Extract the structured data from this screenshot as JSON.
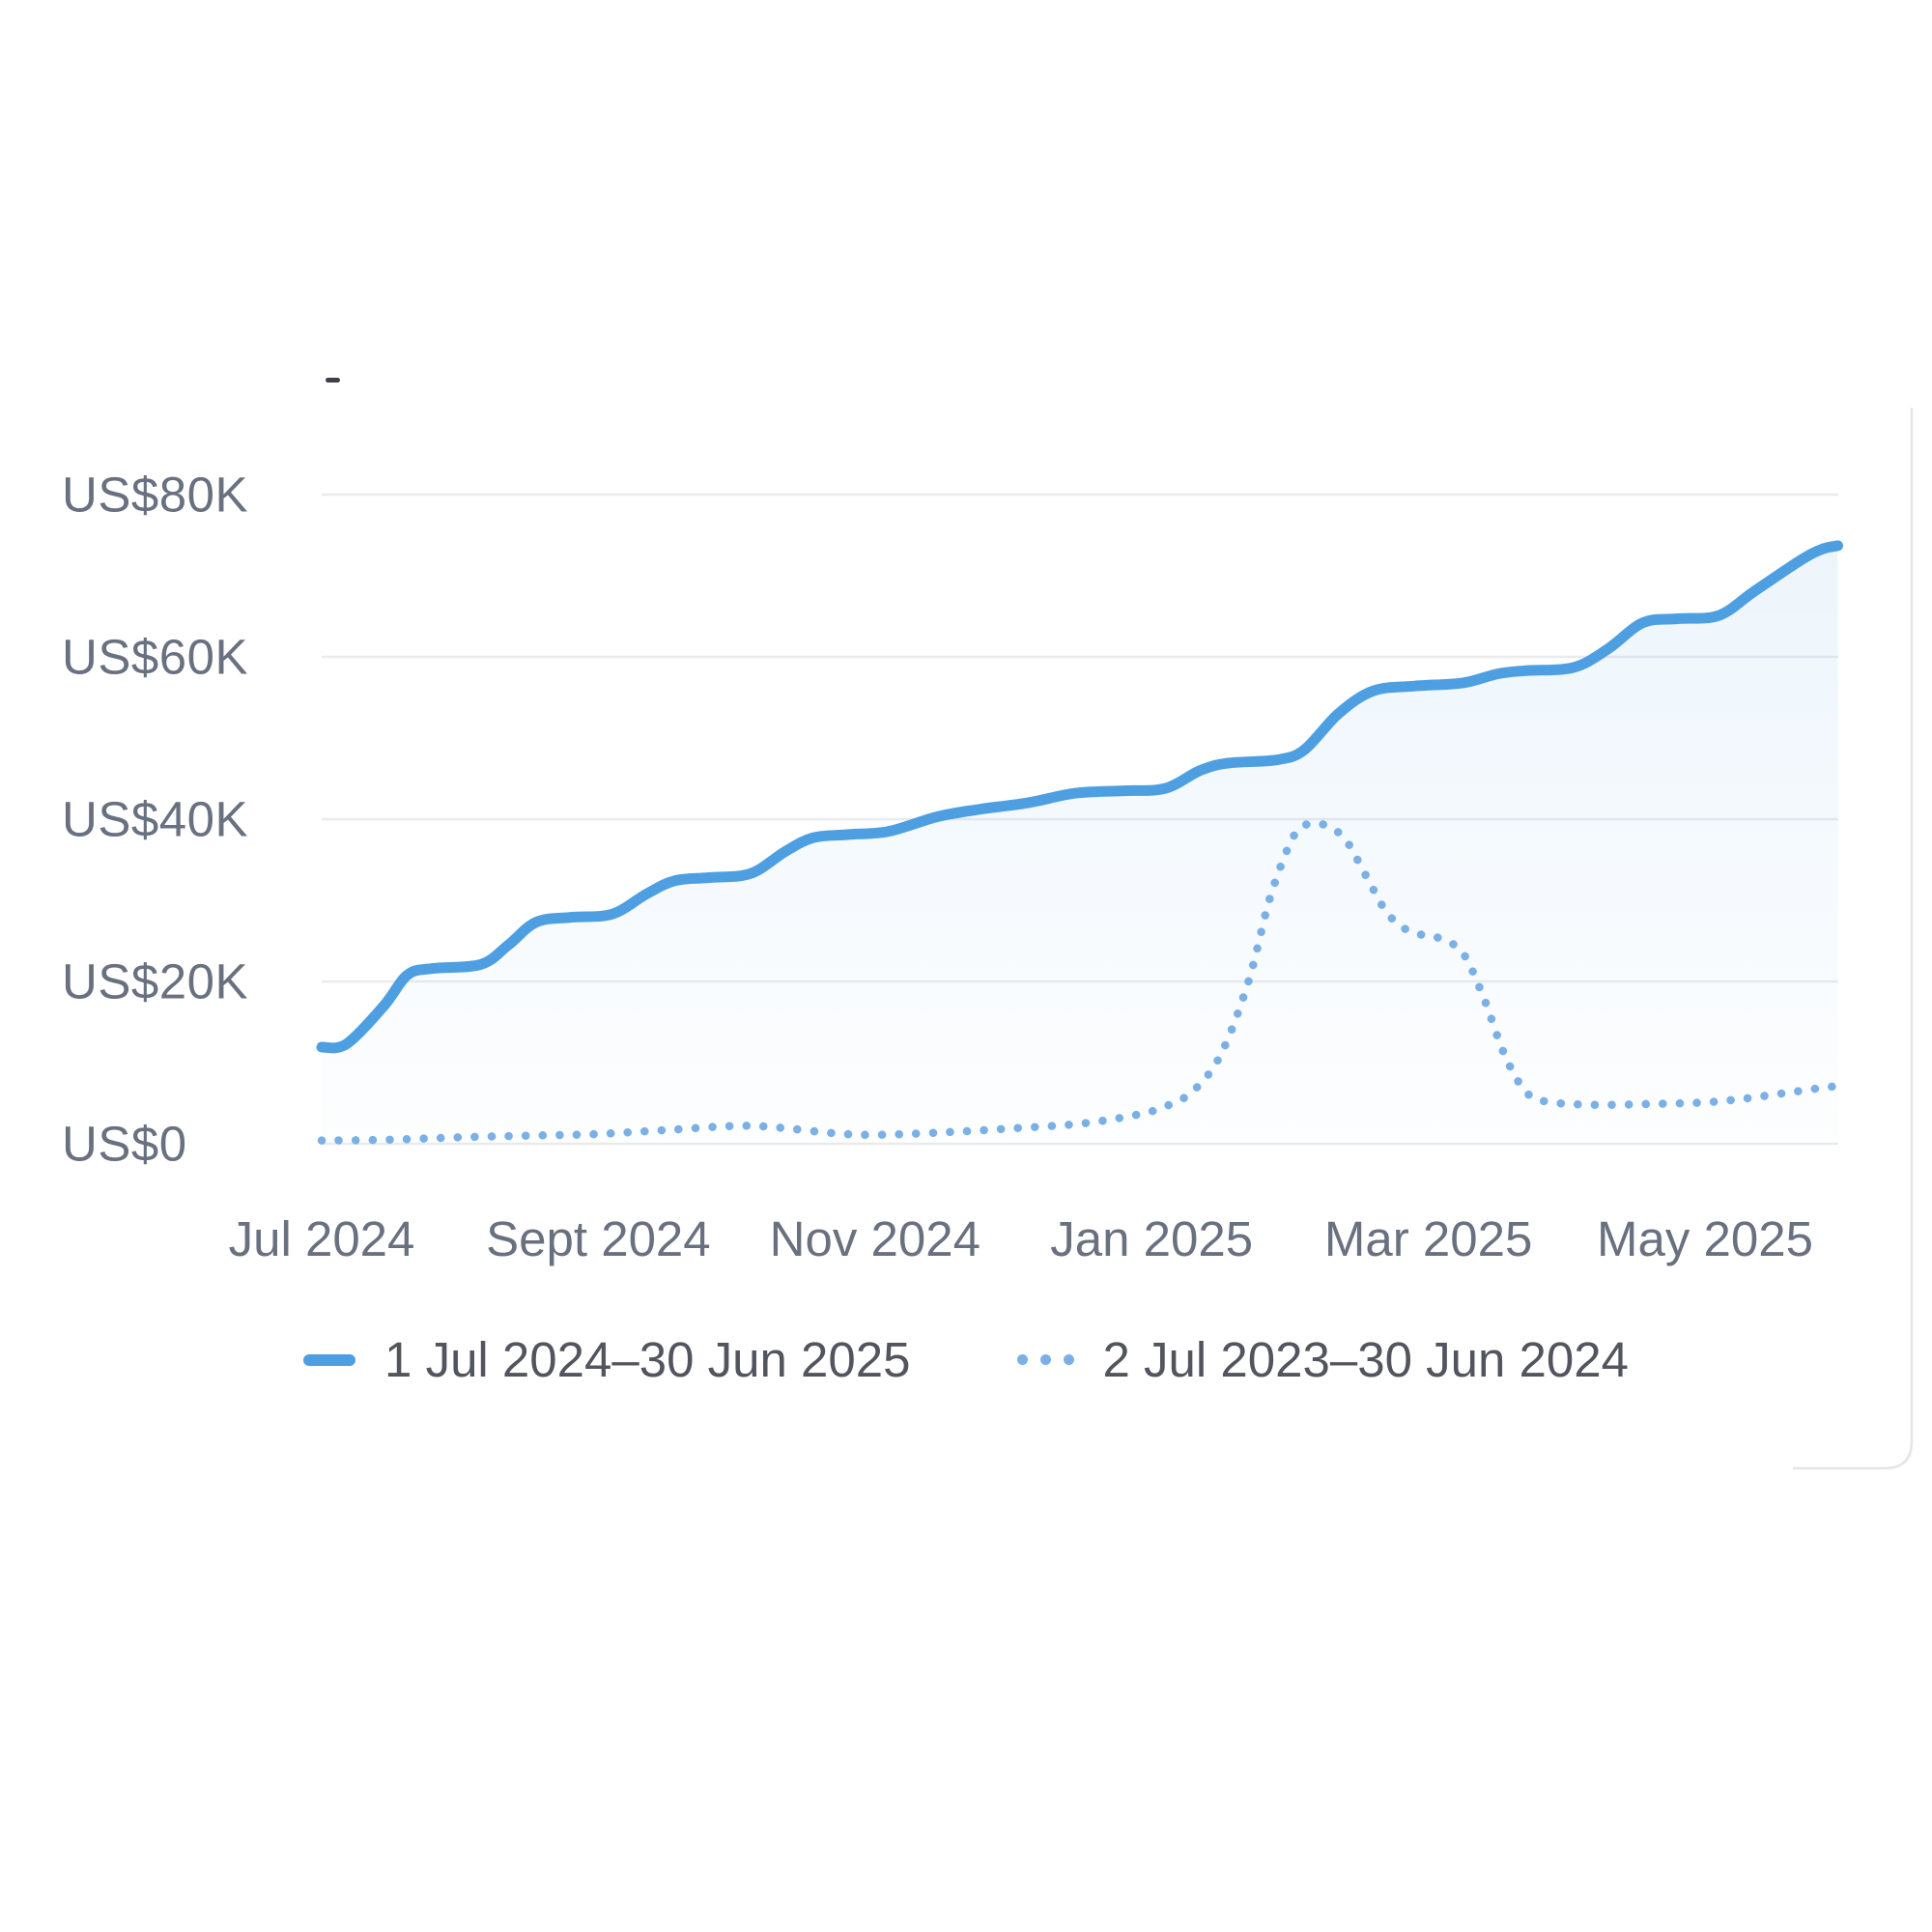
{
  "title_placeholder": "-",
  "colors": {
    "current_line": "#4d9fe2",
    "previous_line": "#7bb0e6",
    "fill_top": "rgba(77,159,226,0.10)",
    "fill_bottom": "rgba(77,159,226,0.01)",
    "gridline": "#ebebee",
    "axis_label": "#697180",
    "legend_text": "#53555e",
    "card_border": "#e4e5e8"
  },
  "legend": [
    {
      "label": "1 Jul 2024–30 Jun 2025",
      "swatch": "solid-line"
    },
    {
      "label": "2 Jul 2023–30 Jun 2024",
      "swatch": "dotted-line"
    }
  ],
  "chart_data": {
    "type": "line",
    "title": "",
    "xlabel": "",
    "ylabel": "",
    "grid": true,
    "legend_position": "bottom-center",
    "y_axis": {
      "range_usd": [
        0,
        80000
      ],
      "ticks": [
        {
          "value": 80000,
          "label": "US$80K"
        },
        {
          "value": 60000,
          "label": "US$60K"
        },
        {
          "value": 40000,
          "label": "US$40K"
        },
        {
          "value": 20000,
          "label": "US$20K"
        },
        {
          "value": 0,
          "label": "US$0"
        }
      ]
    },
    "x_axis": {
      "unit": "months-since-1-Jul-2024",
      "range_months": [
        0,
        10.96
      ],
      "ticks": [
        {
          "m": 0,
          "label": "Jul 2024"
        },
        {
          "m": 2,
          "label": "Sept 2024"
        },
        {
          "m": 4,
          "label": "Nov 2024"
        },
        {
          "m": 6,
          "label": "Jan 2025"
        },
        {
          "m": 8,
          "label": "Mar 2025"
        },
        {
          "m": 10,
          "label": "May 2025"
        }
      ]
    },
    "series": [
      {
        "name": "1 Jul 2024–30 Jun 2025",
        "style": "solid",
        "area_fill": true,
        "points_month_usd": [
          [
            0.0,
            11900
          ],
          [
            0.18,
            12300
          ],
          [
            0.45,
            17000
          ],
          [
            0.62,
            20800
          ],
          [
            0.8,
            21600
          ],
          [
            1.15,
            22100
          ],
          [
            1.35,
            24500
          ],
          [
            1.55,
            27300
          ],
          [
            1.8,
            27900
          ],
          [
            2.1,
            28300
          ],
          [
            2.35,
            30800
          ],
          [
            2.55,
            32400
          ],
          [
            2.8,
            32800
          ],
          [
            3.1,
            33300
          ],
          [
            3.35,
            36000
          ],
          [
            3.55,
            37700
          ],
          [
            3.8,
            38100
          ],
          [
            4.1,
            38500
          ],
          [
            4.45,
            40300
          ],
          [
            4.75,
            41200
          ],
          [
            5.1,
            42000
          ],
          [
            5.45,
            43200
          ],
          [
            5.8,
            43500
          ],
          [
            6.1,
            43800
          ],
          [
            6.35,
            46000
          ],
          [
            6.55,
            46900
          ],
          [
            6.9,
            47300
          ],
          [
            7.1,
            48500
          ],
          [
            7.35,
            53000
          ],
          [
            7.6,
            55800
          ],
          [
            7.9,
            56400
          ],
          [
            8.25,
            56800
          ],
          [
            8.5,
            57900
          ],
          [
            8.7,
            58300
          ],
          [
            9.05,
            58700
          ],
          [
            9.3,
            61000
          ],
          [
            9.55,
            64200
          ],
          [
            9.8,
            64700
          ],
          [
            10.1,
            65100
          ],
          [
            10.35,
            68000
          ],
          [
            10.7,
            72000
          ],
          [
            10.85,
            73300
          ],
          [
            10.96,
            73700
          ]
        ]
      },
      {
        "name": "2 Jul 2023–30 Jun 2024",
        "style": "dotted",
        "area_fill": false,
        "points_month_usd": [
          [
            0.0,
            400
          ],
          [
            0.5,
            500
          ],
          [
            1.0,
            800
          ],
          [
            1.5,
            1000
          ],
          [
            2.0,
            1200
          ],
          [
            2.5,
            1700
          ],
          [
            3.0,
            2200
          ],
          [
            3.3,
            2000
          ],
          [
            3.7,
            1300
          ],
          [
            4.0,
            1100
          ],
          [
            4.5,
            1400
          ],
          [
            5.0,
            1900
          ],
          [
            5.5,
            2500
          ],
          [
            5.9,
            3600
          ],
          [
            6.1,
            4600
          ],
          [
            6.3,
            6500
          ],
          [
            6.5,
            11000
          ],
          [
            6.7,
            20000
          ],
          [
            6.85,
            30000
          ],
          [
            7.0,
            37000
          ],
          [
            7.1,
            39200
          ],
          [
            7.25,
            39300
          ],
          [
            7.4,
            37500
          ],
          [
            7.55,
            33000
          ],
          [
            7.7,
            28500
          ],
          [
            7.85,
            26300
          ],
          [
            8.0,
            25600
          ],
          [
            8.1,
            25200
          ],
          [
            8.25,
            23500
          ],
          [
            8.4,
            18000
          ],
          [
            8.55,
            11000
          ],
          [
            8.7,
            6500
          ],
          [
            8.85,
            5200
          ],
          [
            9.2,
            4800
          ],
          [
            9.6,
            4900
          ],
          [
            10.0,
            5100
          ],
          [
            10.3,
            5600
          ],
          [
            10.6,
            6300
          ],
          [
            10.85,
            6900
          ],
          [
            10.96,
            7100
          ]
        ]
      }
    ]
  }
}
